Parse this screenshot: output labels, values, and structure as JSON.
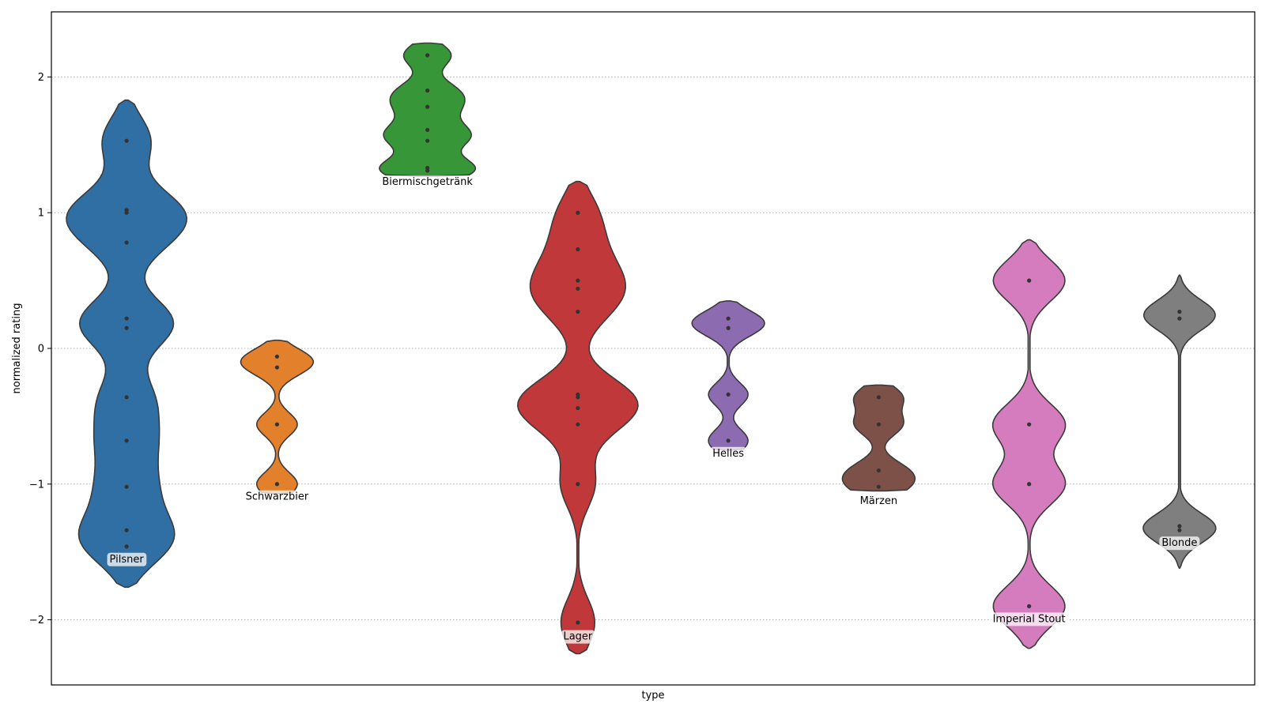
{
  "chart_data": {
    "type": "violin",
    "xlabel": "type",
    "ylabel": "normalized rating",
    "ylim": [
      -2.48,
      2.48
    ],
    "yticks": [
      2,
      1,
      0,
      -1,
      -2
    ],
    "ytick_labels": [
      "2",
      "1",
      "0",
      "−1",
      "−2"
    ],
    "grid": "horizontal dotted",
    "series": [
      {
        "name": "Pilsner",
        "color": "#2f6fa3",
        "points": [
          1.53,
          1.02,
          1.0,
          0.78,
          0.22,
          0.15,
          -0.36,
          -0.68,
          -1.02,
          -1.34,
          -1.46
        ],
        "range": [
          -1.76,
          1.83
        ],
        "label_y": -1.55
      },
      {
        "name": "Schwarzbier",
        "color": "#e3802b",
        "points": [
          -0.06,
          -0.14,
          -0.56,
          -1.0
        ],
        "range": [
          -1.07,
          0.06
        ],
        "label_y": -1.09
      },
      {
        "name": "Biermischgetränk",
        "color": "#379637",
        "points": [
          2.16,
          1.9,
          1.78,
          1.61,
          1.53,
          1.33,
          1.31
        ],
        "range": [
          1.27,
          2.25
        ],
        "label_y": 1.23
      },
      {
        "name": "Lager",
        "color": "#c0383a",
        "points": [
          1.0,
          0.73,
          0.5,
          0.44,
          0.27,
          -0.34,
          -0.36,
          -0.44,
          -0.56,
          -1.0,
          -2.02
        ],
        "range": [
          -2.25,
          1.23
        ],
        "label_y": -2.12
      },
      {
        "name": "Helles",
        "color": "#8c6bb0",
        "points": [
          0.22,
          0.15,
          -0.34,
          -0.68
        ],
        "range": [
          -0.75,
          0.35
        ],
        "label_y": -0.77
      },
      {
        "name": "Märzen",
        "color": "#7e5148",
        "points": [
          -0.36,
          -0.56,
          -0.9,
          -1.02
        ],
        "range": [
          -1.05,
          -0.27
        ],
        "label_y": -1.12
      },
      {
        "name": "Imperial Stout",
        "color": "#d47cbd",
        "points": [
          0.5,
          -0.56,
          -1.0,
          -1.9
        ],
        "range": [
          -2.21,
          0.8
        ],
        "label_y": -1.99
      },
      {
        "name": "Blonde",
        "color": "#7f7f7f",
        "points": [
          0.27,
          0.22,
          -1.31,
          -1.34
        ],
        "range": [
          -1.62,
          0.54
        ],
        "label_y": -1.43
      }
    ]
  }
}
